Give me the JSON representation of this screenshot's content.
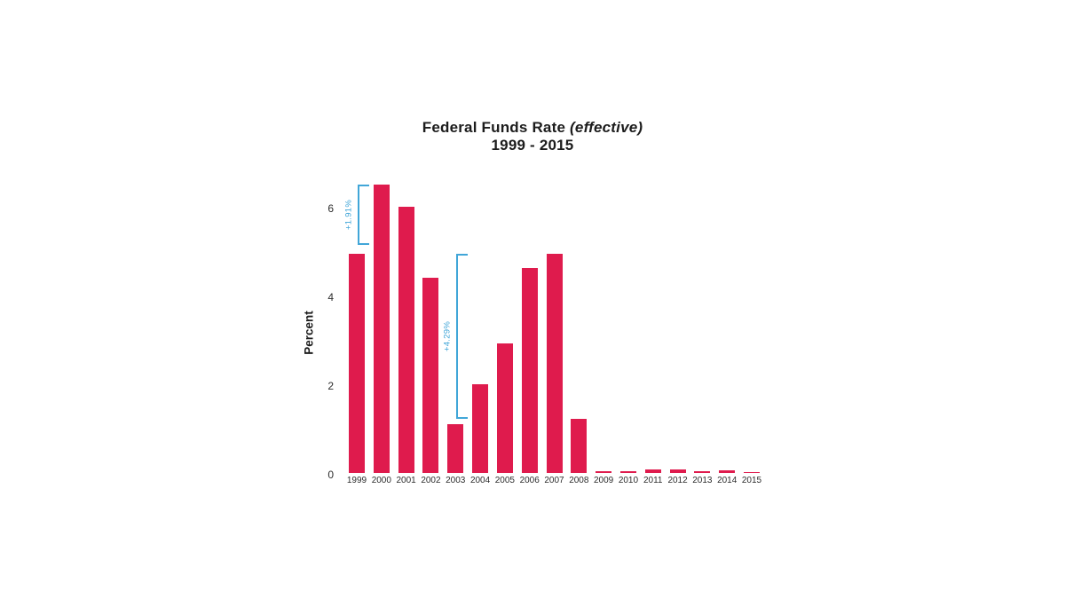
{
  "page": {
    "background_color": "#ffffff"
  },
  "chart_data": {
    "type": "bar",
    "title": "Federal Funds Rate",
    "title_emphasis": "(effective)",
    "subtitle": "1999 - 2015",
    "xlabel": "",
    "ylabel": "Percent",
    "bar_color": "#df1b4d",
    "annotation_color": "#41a6d8",
    "grid": false,
    "legend": false,
    "yticks": [
      0,
      2,
      4,
      6
    ],
    "ylim": [
      0,
      6.6
    ],
    "categories": [
      "1999",
      "2000",
      "2001",
      "2002",
      "2003",
      "2004",
      "2005",
      "2006",
      "2007",
      "2008",
      "2009",
      "2010",
      "2011",
      "2012",
      "2013",
      "2014",
      "2015"
    ],
    "values": [
      4.95,
      6.5,
      6.0,
      4.4,
      1.1,
      2.0,
      2.92,
      4.62,
      4.95,
      1.22,
      0.05,
      0.05,
      0.08,
      0.08,
      0.05,
      0.06,
      0.03
    ],
    "annotations": [
      {
        "label": "+1.91%",
        "anchor_year": "1999",
        "from": 5.15,
        "to": 6.5
      },
      {
        "label": "+4.29%",
        "anchor_year": "2003",
        "from": 1.22,
        "to": 4.95
      }
    ]
  }
}
